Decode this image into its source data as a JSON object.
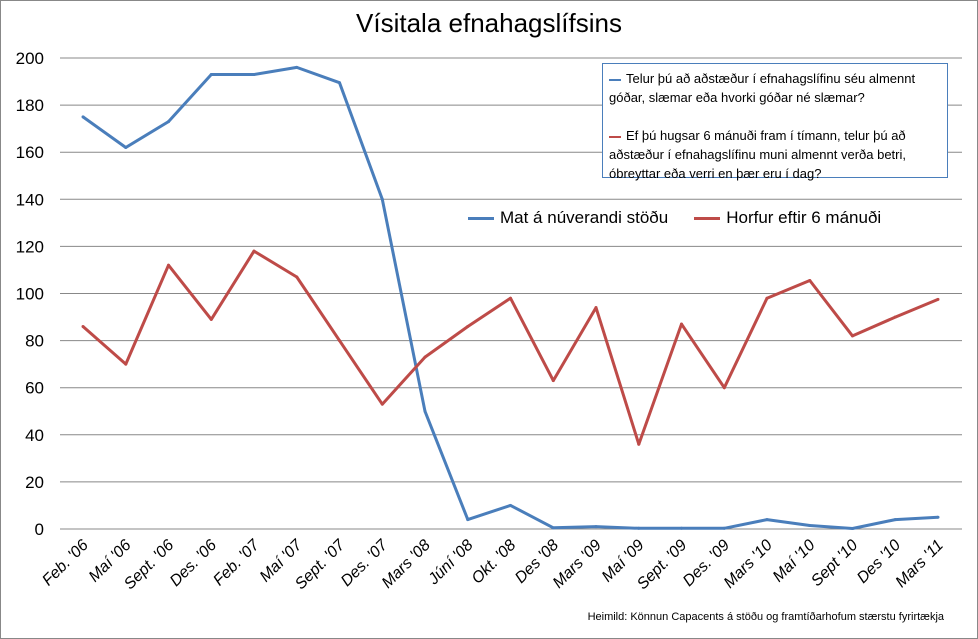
{
  "chart_data": {
    "type": "line",
    "title": "Vísitala efnahagslífsins",
    "xlabel": "",
    "ylabel": "",
    "ylim": [
      0,
      200
    ],
    "yticks": [
      0,
      20,
      40,
      60,
      80,
      100,
      120,
      140,
      160,
      180,
      200
    ],
    "grid": "horizontal",
    "legend_placement": "right, inside plot",
    "categories": [
      "Feb. '06",
      "Maí '06",
      "Sept. '06",
      "Des. '06",
      "Feb. '07",
      "Maí '07",
      "Sept. '07",
      "Des. '07",
      "Mars '08",
      "Júní '08",
      "Okt. '08",
      "Des '08",
      "Mars '09",
      "Maí '09",
      "Sept. '09",
      "Des. '09",
      "Mars '10",
      "Maí '10",
      "Sept '10",
      "Des '10",
      "Mars '11"
    ],
    "series": [
      {
        "name": "Mat á núverandi stöðu",
        "color": "#4a7ebb",
        "values": [
          175,
          162,
          173,
          193,
          193,
          196,
          189.5,
          140,
          50,
          4,
          10,
          0.5,
          1,
          0.3,
          0.3,
          0.3,
          4,
          1.5,
          0.2,
          4,
          5
        ]
      },
      {
        "name": "Horfur eftir 6 mánuði",
        "color": "#be4b48",
        "values": [
          86,
          70,
          112,
          89,
          118,
          107,
          80,
          53,
          73,
          86,
          98,
          63,
          94,
          36,
          87,
          60,
          98,
          105.5,
          82,
          90,
          97.5
        ]
      }
    ],
    "questions": [
      {
        "text": "Telur þú að aðstæður í efnahagslífinu séu almennt góðar, slæmar eða hvorki góðar né slæmar?",
        "color": "#4a7ebb"
      },
      {
        "text": "Ef þú hugsar 6 mánuði fram í tímann, telur þú að aðstæður í efnahagslífinu muni almennt verða betri, óbreyttar eða verri en þær eru í dag?",
        "color": "#be4b48"
      }
    ],
    "source": "Heimild: Könnun Capacents á stöðu og framtíðarhofum stærstu fyrirtækja"
  }
}
